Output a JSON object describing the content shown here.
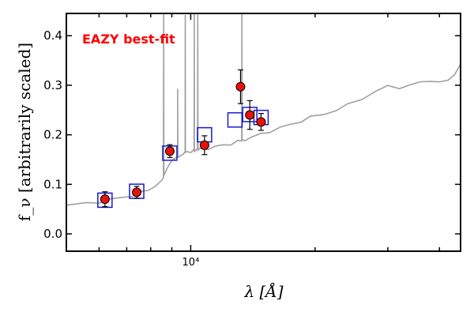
{
  "chart_data": {
    "type": "scatter",
    "title": "",
    "xlabel": "λ [Å]",
    "ylabel": "f_ν [arbitrarily scaled]",
    "x_scale": "log",
    "xlim": [
      5000,
      45000
    ],
    "ylim": [
      -0.035,
      0.445
    ],
    "y_ticks": [
      "0.0",
      "0.1",
      "0.2",
      "0.3",
      "0.4"
    ],
    "x_tick_label": "10⁴",
    "annotation": {
      "text": "EAZY best-fit",
      "color": "#ff0000"
    },
    "colors": {
      "model": "#a0a0a0",
      "photometry": "#e8120c",
      "template_box": "#1a1acc"
    },
    "model_spectrum": {
      "x": [
        5000,
        5600,
        6000,
        6400,
        6800,
        7200,
        7600,
        7900,
        8200,
        8500,
        8800,
        9000,
        9300,
        9600,
        9800,
        10000,
        10500,
        11000,
        11500,
        12000,
        12500,
        13000,
        13500,
        14000,
        14800,
        15500,
        16500,
        17500,
        18500,
        19500,
        21000,
        22500,
        24000,
        26000,
        28000,
        30000,
        32000,
        34000,
        36000,
        38000,
        40000,
        42000,
        43500,
        45000
      ],
      "y": [
        0.058,
        0.061,
        0.065,
        0.069,
        0.073,
        0.078,
        0.083,
        0.089,
        0.097,
        0.105,
        0.138,
        0.146,
        0.156,
        0.162,
        0.165,
        0.167,
        0.17,
        0.173,
        0.176,
        0.179,
        0.182,
        0.186,
        0.19,
        0.195,
        0.201,
        0.207,
        0.214,
        0.221,
        0.228,
        0.235,
        0.242,
        0.25,
        0.26,
        0.274,
        0.287,
        0.298,
        0.296,
        0.299,
        0.307,
        0.31,
        0.304,
        0.312,
        0.322,
        0.34
      ]
    },
    "emission_lines": [
      {
        "x": 8600,
        "y": 0.445
      },
      {
        "x": 9300,
        "y": 0.29
      },
      {
        "x": 9700,
        "y": 0.445
      },
      {
        "x": 10200,
        "y": 0.445
      },
      {
        "x": 10400,
        "y": 0.445
      },
      {
        "x": 13300,
        "y": 0.445
      }
    ],
    "photometry": {
      "x": [
        6200,
        7400,
        8900,
        10800,
        13200,
        13900,
        14800
      ],
      "y": [
        0.07,
        0.084,
        0.167,
        0.179,
        0.297,
        0.24,
        0.226
      ],
      "yerr": [
        0.015,
        0.012,
        0.013,
        0.019,
        0.034,
        0.029,
        0.017
      ]
    },
    "template_fluxes": {
      "x": [
        6200,
        7400,
        8900,
        10800,
        12800,
        13900,
        14800
      ],
      "y": [
        0.068,
        0.086,
        0.163,
        0.2,
        0.23,
        0.241,
        0.235
      ]
    }
  }
}
